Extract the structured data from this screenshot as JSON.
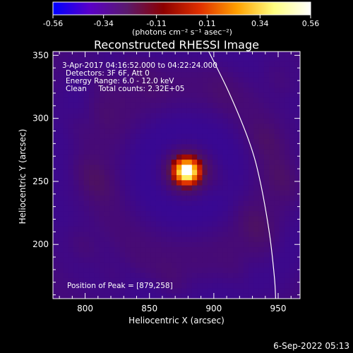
{
  "colorbar": {
    "ticks": [
      "-0.56",
      "-0.34",
      "-0.11",
      "0.11",
      "0.34",
      "0.56"
    ],
    "tick_values": [
      -0.56,
      -0.34,
      -0.11,
      0.11,
      0.34,
      0.56
    ],
    "range": [
      -0.56,
      0.56
    ],
    "unit_label": "(photons cm⁻² s⁻¹ asec⁻²)",
    "colors": [
      "#0000ff",
      "#5a00c8",
      "#5a1a6e",
      "#8c0000",
      "#e03000",
      "#ffa000",
      "#ffff80",
      "#ffffff"
    ]
  },
  "chart_data": {
    "type": "heatmap",
    "title": "Reconstructed RHESSI Image",
    "xlabel": "Heliocentric X (arcsec)",
    "ylabel": "Heliocentric Y (arcsec)",
    "xlim": [
      775,
      967
    ],
    "ylim": [
      157,
      353
    ],
    "x_ticks": [
      800,
      850,
      900,
      950
    ],
    "y_ticks": [
      200,
      250,
      300,
      350
    ],
    "annotations": [
      "3-Apr-2017 04:16:52.000 to 04:22:24.000",
      "Detectors: 3F 6F, Att 0",
      "Energy Range: 6.0 - 12.0 keV",
      "Clean     Total counts: 2.32E+05"
    ],
    "peak_label": "Position of Peak = [879,258]",
    "peak": [
      879,
      258
    ],
    "limb": [
      [
        896,
        353
      ],
      [
        912,
        320
      ],
      [
        928,
        280
      ],
      [
        936,
        250
      ],
      [
        943,
        210
      ],
      [
        947,
        175
      ],
      [
        948,
        157
      ]
    ],
    "grid": false
  },
  "footer": {
    "timestamp": "6-Sep-2022 05:13"
  }
}
